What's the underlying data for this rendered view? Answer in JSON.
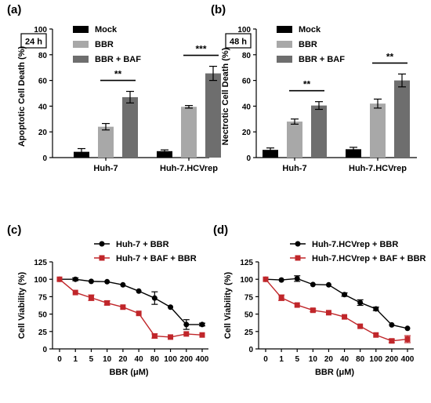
{
  "chart_data": [
    {
      "type": "bar",
      "panel_label": "(a)",
      "timepoint": "24 h",
      "ylabel": "Apoptotic Cell Death (%)",
      "ylim": [
        0,
        100
      ],
      "yticks": [
        "0",
        "20",
        "40",
        "60",
        "80",
        "100"
      ],
      "categories": [
        "Huh-7",
        "Huh-7.HCVrep"
      ],
      "series": [
        {
          "name": "Mock",
          "color": "#000000",
          "values": [
            4.5,
            5
          ],
          "errors": [
            2.5,
            1
          ]
        },
        {
          "name": "BBR",
          "color": "#a8a8a8",
          "values": [
            24,
            39.5
          ],
          "errors": [
            2.5,
            1
          ]
        },
        {
          "name": "BBR + BAF",
          "color": "#6e6e6e",
          "values": [
            47,
            65.5
          ],
          "errors": [
            4.5,
            5.5
          ]
        }
      ],
      "significance": [
        {
          "category": 0,
          "label": "**"
        },
        {
          "category": 1,
          "label": "***"
        }
      ]
    },
    {
      "type": "bar",
      "panel_label": "(b)",
      "timepoint": "48 h",
      "ylabel": "Nectrotic Cell Death (%)",
      "ylim": [
        0,
        100
      ],
      "yticks": [
        "0",
        "20",
        "40",
        "60",
        "80",
        "100"
      ],
      "categories": [
        "Huh-7",
        "Huh-7.HCVrep"
      ],
      "series": [
        {
          "name": "Mock",
          "color": "#000000",
          "values": [
            6,
            6.5
          ],
          "errors": [
            1.5,
            1.5
          ]
        },
        {
          "name": "BBR",
          "color": "#a8a8a8",
          "values": [
            28,
            42
          ],
          "errors": [
            2,
            3.5
          ]
        },
        {
          "name": "BBR + BAF",
          "color": "#6e6e6e",
          "values": [
            40.5,
            60
          ],
          "errors": [
            3,
            5
          ]
        }
      ],
      "significance": [
        {
          "category": 0,
          "label": "**"
        },
        {
          "category": 1,
          "label": "**"
        }
      ]
    },
    {
      "type": "line",
      "panel_label": "(c)",
      "ylabel": "Cell Viability (%)",
      "xlabel": "BBR (μM)",
      "ylim": [
        0,
        125
      ],
      "yticks": [
        "0",
        "25",
        "50",
        "75",
        "100",
        "125"
      ],
      "x": [
        "0",
        "1",
        "5",
        "10",
        "20",
        "40",
        "80",
        "100",
        "200",
        "400"
      ],
      "series": [
        {
          "name": "Huh-7 + BBR",
          "color": "#000000",
          "marker": "circle",
          "values": [
            100,
            100,
            97,
            96.5,
            92,
            83,
            73,
            60,
            35,
            35
          ],
          "errors": [
            0,
            2,
            0,
            0,
            0,
            0,
            9,
            0,
            7,
            2
          ]
        },
        {
          "name": "Huh-7 + BAF + BBR",
          "color": "#c0262a",
          "marker": "square",
          "values": [
            100,
            81,
            73.5,
            66,
            60,
            51,
            18.5,
            17,
            21.5,
            20
          ],
          "errors": [
            0,
            0,
            4,
            3,
            0,
            0,
            3,
            0,
            0,
            0
          ]
        }
      ]
    },
    {
      "type": "line",
      "panel_label": "(d)",
      "ylabel": "Cell Viability (%)",
      "xlabel": "BBR (μM)",
      "ylim": [
        0,
        125
      ],
      "yticks": [
        "0",
        "25",
        "50",
        "75",
        "100",
        "125"
      ],
      "x": [
        "0",
        "1",
        "5",
        "10",
        "20",
        "40",
        "80",
        "100",
        "200",
        "400"
      ],
      "series": [
        {
          "name": "Huh-7.HCVrep + BBR",
          "color": "#000000",
          "marker": "circle",
          "values": [
            100,
            99,
            101,
            92.5,
            92,
            78,
            66.5,
            57.5,
            34.5,
            29.5
          ],
          "errors": [
            0,
            0,
            4,
            0,
            0,
            2.5,
            4,
            2.5,
            0,
            0
          ]
        },
        {
          "name": "Huh-7.HCVrep + BAF + BBR",
          "color": "#c0262a",
          "marker": "square",
          "values": [
            100,
            73.5,
            63,
            55.5,
            52,
            46,
            32.5,
            20,
            11.5,
            14
          ],
          "errors": [
            0,
            4,
            0,
            2,
            0,
            0,
            0,
            0,
            2.5,
            5
          ]
        }
      ]
    }
  ]
}
